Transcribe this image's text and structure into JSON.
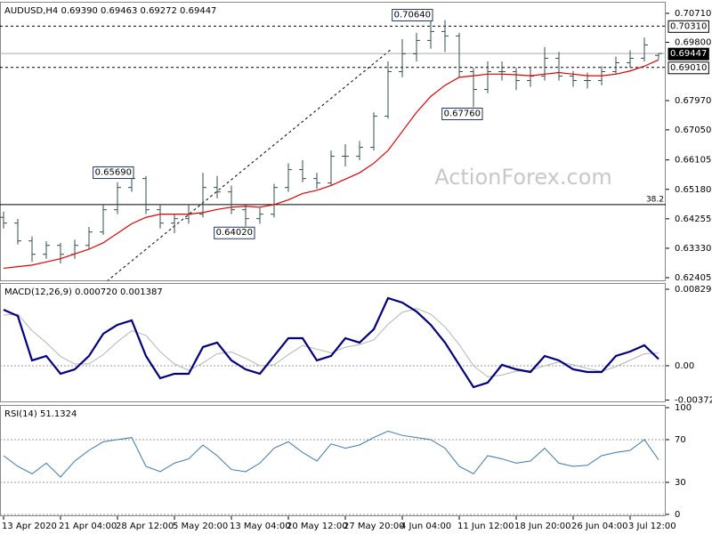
{
  "chart_data": [
    {
      "type": "ohlc",
      "title": "AUDUSD,H4  0.69390 0.69463 0.69272 0.69447",
      "categories": [
        "13 Apr 2020",
        null,
        null,
        null,
        "21 Apr 04:00",
        null,
        null,
        null,
        "28 Apr 12:00",
        null,
        null,
        null,
        "5 May 20:00",
        null,
        null,
        null,
        "13 May 04:00",
        null,
        null,
        null,
        "20 May 12:00",
        null,
        null,
        null,
        "27 May 20:00",
        null,
        null,
        null,
        "4 Jun 04:00",
        null,
        null,
        null,
        "11 Jun 12:00",
        null,
        null,
        null,
        "18 Jun 20:00",
        null,
        null,
        null,
        "26 Jun 04:00",
        null,
        null,
        null,
        "3 Jul 12:00",
        null,
        null
      ],
      "open": [
        0.643,
        0.6412,
        0.6356,
        0.6314,
        0.6342,
        0.6314,
        0.6342,
        0.6384,
        0.6454,
        0.6524,
        0.6552,
        0.6454,
        0.6412,
        0.6426,
        0.644,
        0.6524,
        0.651,
        0.6454,
        0.6426,
        0.644,
        0.6524,
        0.658,
        0.6552,
        0.6538,
        0.6622,
        0.6622,
        0.665,
        0.6748,
        0.6888,
        0.6944,
        0.6986,
        0.7014,
        0.7,
        0.6888,
        0.6832,
        0.6888,
        0.6888,
        0.686,
        0.6874,
        0.693,
        0.6874,
        0.686,
        0.686,
        0.6888,
        0.6916,
        0.693,
        0.6939
      ],
      "high": [
        0.6448,
        0.6425,
        0.637,
        0.6355,
        0.635,
        0.636,
        0.64,
        0.647,
        0.654,
        0.6569,
        0.656,
        0.647,
        0.644,
        0.647,
        0.657,
        0.656,
        0.653,
        0.647,
        0.646,
        0.6535,
        0.66,
        0.661,
        0.657,
        0.664,
        0.666,
        0.667,
        0.676,
        0.692,
        0.699,
        0.701,
        0.7064,
        0.705,
        0.701,
        0.69,
        0.692,
        0.692,
        0.69,
        0.69,
        0.6965,
        0.695,
        0.689,
        0.6885,
        0.6905,
        0.6935,
        0.6955,
        0.6995,
        0.6946
      ],
      "low": [
        0.6395,
        0.6345,
        0.629,
        0.63,
        0.6285,
        0.63,
        0.633,
        0.6375,
        0.644,
        0.651,
        0.644,
        0.6395,
        0.638,
        0.641,
        0.643,
        0.649,
        0.644,
        0.6402,
        0.641,
        0.643,
        0.651,
        0.654,
        0.652,
        0.653,
        0.659,
        0.661,
        0.664,
        0.674,
        0.687,
        0.692,
        0.696,
        0.695,
        0.687,
        0.6776,
        0.682,
        0.686,
        0.683,
        0.684,
        0.686,
        0.686,
        0.684,
        0.6835,
        0.6845,
        0.688,
        0.69,
        0.692,
        0.6927
      ],
      "close": [
        0.6412,
        0.6356,
        0.6314,
        0.6342,
        0.6314,
        0.6342,
        0.6384,
        0.6454,
        0.6524,
        0.6552,
        0.6454,
        0.6412,
        0.6426,
        0.644,
        0.6524,
        0.651,
        0.6454,
        0.6426,
        0.644,
        0.6524,
        0.658,
        0.6552,
        0.6538,
        0.6622,
        0.6622,
        0.665,
        0.6748,
        0.6888,
        0.6944,
        0.6986,
        0.7014,
        0.7,
        0.6888,
        0.6832,
        0.6888,
        0.6888,
        0.686,
        0.6874,
        0.693,
        0.6874,
        0.686,
        0.686,
        0.6888,
        0.6916,
        0.693,
        0.6972,
        0.6945
      ],
      "color": "#2f4f4f",
      "ma": {
        "color": "#e00000",
        "values": [
          0.627,
          0.6275,
          0.628,
          0.629,
          0.63,
          0.6315,
          0.633,
          0.635,
          0.638,
          0.641,
          0.643,
          0.644,
          0.644,
          0.644,
          0.6445,
          0.6455,
          0.6462,
          0.6465,
          0.6462,
          0.647,
          0.6485,
          0.6505,
          0.6515,
          0.653,
          0.655,
          0.657,
          0.66,
          0.664,
          0.67,
          0.676,
          0.681,
          0.6845,
          0.687,
          0.6875,
          0.688,
          0.688,
          0.6878,
          0.6875,
          0.688,
          0.6885,
          0.688,
          0.6875,
          0.6875,
          0.688,
          0.689,
          0.6905,
          0.6925
        ]
      },
      "ylim": [
        0.62293,
        0.71074
      ],
      "yticks": [
        {
          "value": 0.7071,
          "label": "0.70710"
        },
        {
          "value": 0.698,
          "label": "0.69800"
        },
        {
          "value": 0.6797,
          "label": "0.67970"
        },
        {
          "value": 0.6705,
          "label": "0.67050"
        },
        {
          "value": 0.66105,
          "label": "0.66105"
        },
        {
          "value": 0.6518,
          "label": "0.65180"
        },
        {
          "value": 0.64255,
          "label": "0.64255"
        },
        {
          "value": 0.6333,
          "label": "0.63330"
        },
        {
          "value": 0.62405,
          "label": "0.62405"
        }
      ],
      "hlines": [
        {
          "value": 0.7031,
          "label": "0.70310",
          "style": "dashed"
        },
        {
          "value": 0.69447,
          "label": "0.69447",
          "style": "current"
        },
        {
          "value": 0.6901,
          "label": "0.69010",
          "style": "dashed"
        }
      ],
      "fib": {
        "value": 0.647,
        "label": "38.2"
      },
      "price_labels": [
        {
          "value": 0.6569,
          "label": "0.65690"
        },
        {
          "value": 0.6402,
          "label": "0.64020"
        },
        {
          "value": 0.7064,
          "label": "0.70640"
        },
        {
          "value": 0.6776,
          "label": "0.67760"
        }
      ],
      "watermark": "ActionForex.com"
    },
    {
      "type": "macd",
      "title": "MACD(12,26,9) 0.000720 0.001387",
      "macd": {
        "color": "#000080",
        "values": [
          0.00608,
          0.0054,
          0.00058,
          0.00106,
          -0.00087,
          -0.00039,
          0.00106,
          0.00347,
          0.00444,
          0.00492,
          0.00106,
          -0.00135,
          -0.00087,
          -0.00087,
          0.00203,
          0.00251,
          0.00058,
          -0.00039,
          -0.00087,
          0.00106,
          0.00299,
          0.00299,
          0.00058,
          0.00106,
          0.00299,
          0.00251,
          0.00396,
          0.00733,
          0.00685,
          0.00588,
          0.00444,
          0.00251,
          0.0001,
          -0.00232,
          -0.00183,
          0.0001,
          -0.00039,
          -0.00068,
          0.00106,
          0.00058,
          -0.00039,
          -0.00068,
          -0.00068,
          0.00106,
          0.00154,
          0.00222,
          0.00072
        ]
      },
      "signal": {
        "color": "#b4b4b4",
        "values": [
          0.0055,
          0.0056,
          0.0038,
          0.0025,
          0.001,
          0.0002,
          0.0002,
          0.0012,
          0.0026,
          0.0038,
          0.0033,
          0.0015,
          0.0002,
          -0.0005,
          0.0003,
          0.0013,
          0.0015,
          0.0008,
          0.0,
          0.0001,
          0.0012,
          0.0022,
          0.0018,
          0.0014,
          0.002,
          0.0023,
          0.0028,
          0.0045,
          0.0058,
          0.0062,
          0.0056,
          0.0042,
          0.0023,
          0.0,
          -0.0012,
          -0.001,
          -0.0006,
          -0.0005,
          0.0,
          0.0004,
          0.0001,
          -0.0003,
          -0.0006,
          -0.0001,
          0.0006,
          0.0013,
          0.001387
        ]
      },
      "ylim": [
        -0.00396,
        0.00897
      ],
      "yticks": [
        0.008296,
        {
          "value": 0,
          "label": "0.00"
        },
        -0.003725
      ]
    },
    {
      "type": "line",
      "title": "RSI(14) 51.1324",
      "values": [
        55,
        45,
        38,
        48,
        35,
        50,
        60,
        68,
        70,
        72,
        45,
        40,
        48,
        52,
        65,
        55,
        42,
        40,
        48,
        62,
        68,
        58,
        50,
        66,
        62,
        65,
        72,
        78,
        74,
        72,
        70,
        62,
        45,
        38,
        55,
        52,
        48,
        50,
        62,
        48,
        45,
        46,
        55,
        58,
        60,
        70,
        51.1324
      ],
      "color": "#3a78b0",
      "levels": [
        70,
        30
      ],
      "ylim": [
        -1.7,
        102.5
      ],
      "yticks": [
        0,
        30,
        70,
        100
      ]
    }
  ]
}
